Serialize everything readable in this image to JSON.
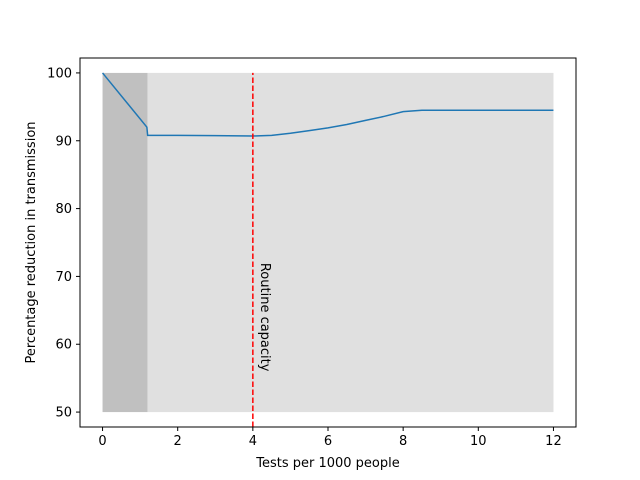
{
  "chart_data": {
    "type": "line",
    "title": "",
    "xlabel": "Tests per 1000 people",
    "ylabel": "Percentage reduction in transmission",
    "xlim": [
      -0.6,
      12.6
    ],
    "ylim": [
      47.8,
      102.2
    ],
    "xticks": [
      0,
      2,
      4,
      6,
      8,
      10,
      12
    ],
    "yticks": [
      50,
      60,
      70,
      80,
      90,
      100
    ],
    "grid": false,
    "legend": "none",
    "colors": {
      "line": "#1f77b4",
      "vline": "#ff0000",
      "band_dark": "#c0c0c0",
      "band_light": "#e0e0e0"
    },
    "bands": [
      {
        "x0": 0,
        "x1": 1.2,
        "y0": 50,
        "y1": 100,
        "shade": "dark"
      },
      {
        "x0": 1.2,
        "x1": 12,
        "y0": 50,
        "y1": 100,
        "shade": "light"
      }
    ],
    "vline": {
      "x": 4,
      "style": "dashed",
      "label": "Routine capacity"
    },
    "series": [
      {
        "x": [
          0,
          1.18,
          1.2,
          2,
          3,
          4,
          4.5,
          5,
          5.5,
          6,
          6.5,
          7,
          7.5,
          8,
          8.5,
          9,
          10,
          11,
          12
        ],
        "y": [
          100,
          92.0,
          90.8,
          90.8,
          90.75,
          90.7,
          90.8,
          91.1,
          91.5,
          91.9,
          92.4,
          93.0,
          93.6,
          94.3,
          94.5,
          94.5,
          94.5,
          94.5,
          94.5
        ]
      }
    ]
  }
}
